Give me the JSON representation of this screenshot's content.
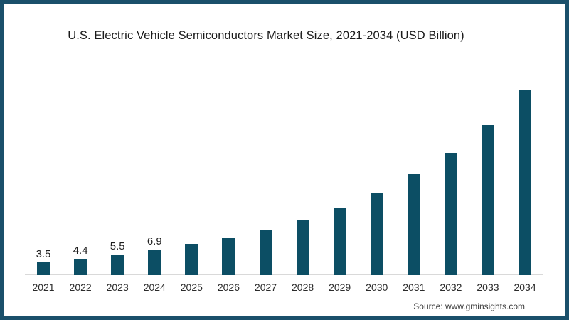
{
  "page": {
    "title": "U.S. Electric Vehicle Semiconductors Market Size, 2021-2034 (USD Billion)",
    "source": "Source: www.gminsights.com"
  },
  "colors": {
    "bar": "#0C4E64",
    "frame_border": "#1A506B",
    "axis_line": "#D9D9D9",
    "title_text": "#1A1A1A",
    "label_text": "#1F1F1F",
    "source_text": "#3D3D3D",
    "background": "#FFFFFF"
  },
  "chart_data": {
    "type": "bar",
    "title": "U.S. Electric Vehicle Semiconductors Market Size, 2021-2034 (USD Billion)",
    "xlabel": "",
    "ylabel": "",
    "categories": [
      "2021",
      "2022",
      "2023",
      "2024",
      "2025",
      "2026",
      "2027",
      "2028",
      "2029",
      "2030",
      "2031",
      "2032",
      "2033",
      "2034"
    ],
    "values": [
      3.5,
      4.4,
      5.5,
      6.9,
      8.3,
      10.0,
      12.0,
      14.8,
      18.1,
      21.9,
      27.0,
      32.8,
      40.2,
      49.6
    ],
    "data_labels": [
      "3.5",
      "4.4",
      "5.5",
      "6.9",
      "",
      "",
      "",
      "",
      "",
      "",
      "",
      "",
      "",
      ""
    ],
    "ylim": [
      0,
      52
    ],
    "grid": false,
    "legend": false,
    "bar_color": "#0C4E64",
    "source": "Source: www.gminsights.com"
  }
}
